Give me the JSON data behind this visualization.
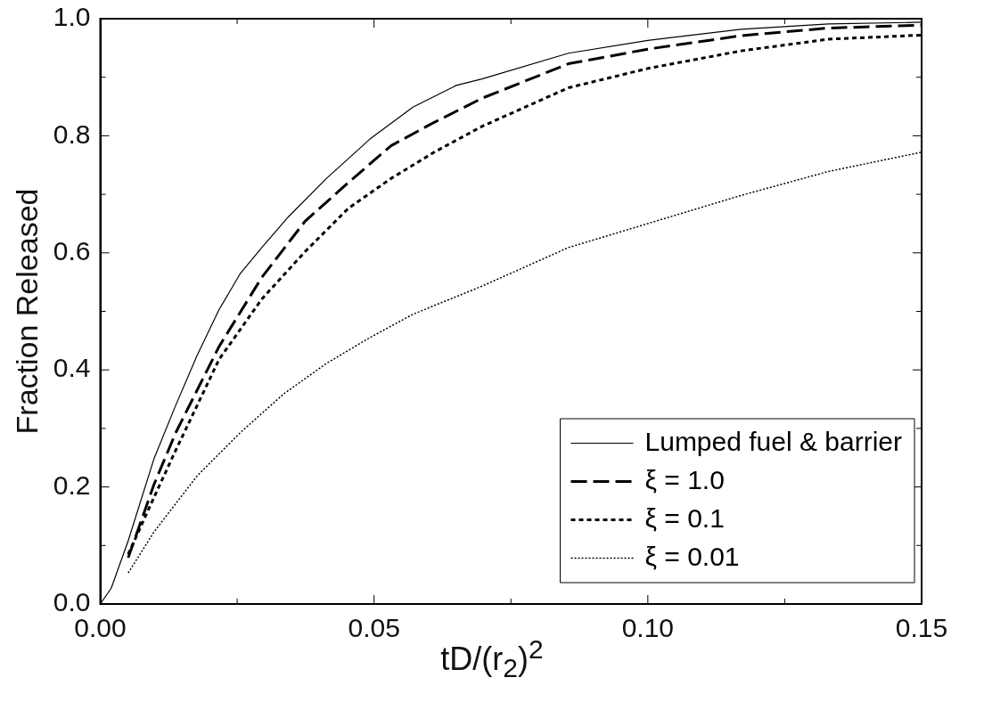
{
  "chart_data": {
    "type": "line",
    "xlabel": "tD/(r$_{2}$)$^{2}$",
    "ylabel": "Fraction Released",
    "xlim": [
      0,
      0.15
    ],
    "ylim": [
      0,
      1.0
    ],
    "xticks": [
      {
        "value": 0,
        "label": "0.00"
      },
      {
        "value": 0.025,
        "label": null
      },
      {
        "value": 0.05,
        "label": "0.05"
      },
      {
        "value": 0.075,
        "label": null
      },
      {
        "value": 0.1,
        "label": "0.10"
      },
      {
        "value": 0.125,
        "label": null
      },
      {
        "value": 0.15,
        "label": "0.15"
      }
    ],
    "yticks": [
      {
        "value": 0,
        "label": "0.0"
      },
      {
        "value": 0.1,
        "label": null
      },
      {
        "value": 0.2,
        "label": "0.2"
      },
      {
        "value": 0.3,
        "label": null
      },
      {
        "value": 0.4,
        "label": "0.4"
      },
      {
        "value": 0.5,
        "label": null
      },
      {
        "value": 0.6,
        "label": "0.6"
      },
      {
        "value": 0.7,
        "label": null
      },
      {
        "value": 0.8,
        "label": "0.8"
      },
      {
        "value": 0.9,
        "label": null
      },
      {
        "value": 1.0,
        "label": "1.0"
      }
    ],
    "grid": false,
    "legend": "bottom right",
    "marker": "none",
    "series": [
      {
        "name": "Lumped fuel & barrier",
        "color": "#000000",
        "line_style": "solid",
        "x": [
          0,
          0.002,
          0.0051,
          0.0098,
          0.0138,
          0.0177,
          0.0217,
          0.0256,
          0.0295,
          0.0343,
          0.0413,
          0.0492,
          0.0571,
          0.065,
          0.0697,
          0.0855,
          0.1,
          0.117,
          0.133,
          0.15
        ],
        "values": [
          0,
          0.027,
          0.108,
          0.248,
          0.34,
          0.425,
          0.503,
          0.565,
          0.609,
          0.661,
          0.727,
          0.794,
          0.849,
          0.886,
          0.897,
          0.941,
          0.963,
          0.982,
          0.991,
          0.994
        ]
      },
      {
        "name": "ξ = 1.0",
        "color": "#000000",
        "line_style": "dashed",
        "x": [
          0.0051,
          0.0098,
          0.0138,
          0.0217,
          0.0295,
          0.0374,
          0.0453,
          0.0531,
          0.061,
          0.0697,
          0.0855,
          0.1,
          0.117,
          0.133,
          0.15
        ],
        "values": [
          0.079,
          0.204,
          0.293,
          0.44,
          0.558,
          0.654,
          0.72,
          0.783,
          0.823,
          0.864,
          0.923,
          0.948,
          0.971,
          0.984,
          0.989
        ]
      },
      {
        "name": "ξ = 0.1",
        "color": "#000000",
        "line_style": "dotted",
        "x": [
          0.0051,
          0.0098,
          0.0138,
          0.0217,
          0.0295,
          0.0374,
          0.0453,
          0.0531,
          0.061,
          0.0697,
          0.0855,
          0.1,
          0.117,
          0.133,
          0.15
        ],
        "values": [
          0.085,
          0.182,
          0.263,
          0.418,
          0.521,
          0.602,
          0.676,
          0.727,
          0.772,
          0.816,
          0.882,
          0.915,
          0.945,
          0.965,
          0.972
        ]
      },
      {
        "name": "ξ = 0.01",
        "color": "#000000",
        "line_style": "dotted",
        "x": [
          0.0051,
          0.0098,
          0.0177,
          0.0256,
          0.0335,
          0.0413,
          0.0492,
          0.0571,
          0.0697,
          0.0855,
          0.1,
          0.117,
          0.133,
          0.15
        ],
        "values": [
          0.053,
          0.123,
          0.219,
          0.293,
          0.359,
          0.411,
          0.455,
          0.495,
          0.543,
          0.609,
          0.65,
          0.698,
          0.739,
          0.772
        ]
      }
    ]
  }
}
